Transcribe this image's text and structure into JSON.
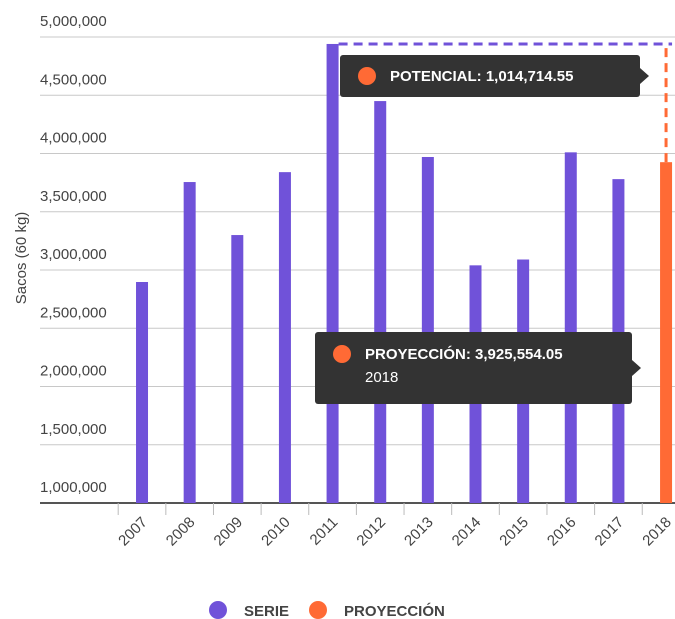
{
  "chart_data": {
    "type": "bar",
    "y_axis_label": "Sacos (60 kg)",
    "categories": [
      "2007",
      "2008",
      "2009",
      "2010",
      "2011",
      "2012",
      "2013",
      "2014",
      "2015",
      "2016",
      "2017",
      "2018"
    ],
    "series": [
      {
        "name": "SERIE",
        "color": "#7052d9",
        "values": [
          2897000,
          3755000,
          3300000,
          3840000,
          4940269,
          4450000,
          3970000,
          3040000,
          3090000,
          4010000,
          3780000,
          null
        ]
      },
      {
        "name": "PROYECCIÓN",
        "color": "#ff6a35",
        "values": [
          null,
          null,
          null,
          null,
          null,
          null,
          null,
          null,
          null,
          null,
          null,
          3925554.05
        ]
      }
    ],
    "potential": {
      "value": 1014714.55,
      "color": "#ff6a35"
    },
    "tooltips": [
      {
        "text": "POTENCIAL: 1,014,714.55",
        "color": "#ff6a35"
      },
      {
        "text": "PROYECCIÓN: 3,925,554.05",
        "color": "#ff6a35"
      }
    ],
    "ylim": [
      1000000,
      5000000
    ],
    "yticks": [
      {
        "value": 1000000,
        "label": "1,000,000"
      },
      {
        "value": 1500000,
        "label": "1,500,000"
      },
      {
        "value": 2000000,
        "label": "2,000,000"
      },
      {
        "value": 2500000,
        "label": "2,500,000"
      },
      {
        "value": 3000000,
        "label": "3,000,000"
      },
      {
        "value": 3500000,
        "label": "3,500,000"
      },
      {
        "value": 4000000,
        "label": "4,000,000"
      },
      {
        "value": 4500000,
        "label": "4,500,000"
      },
      {
        "value": 5000000,
        "label": "5,000,000"
      }
    ],
    "grid": true
  }
}
